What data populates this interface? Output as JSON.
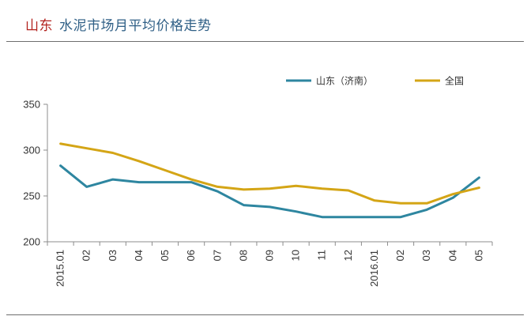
{
  "header": {
    "region": "山东",
    "title": "水泥市场月平均价格走势"
  },
  "chart_data": {
    "type": "line",
    "categories": [
      "2015.01",
      "02",
      "03",
      "04",
      "05",
      "06",
      "07",
      "08",
      "09",
      "10",
      "11",
      "12",
      "2016.01",
      "02",
      "03",
      "04",
      "05"
    ],
    "series": [
      {
        "name": "山东（济南）",
        "color": "#2e86a0",
        "values": [
          283,
          260,
          268,
          265,
          265,
          265,
          255,
          240,
          238,
          233,
          227,
          227,
          227,
          227,
          235,
          248,
          270
        ]
      },
      {
        "name": "全国",
        "color": "#d4a516",
        "values": [
          307,
          302,
          297,
          288,
          278,
          268,
          260,
          257,
          258,
          261,
          258,
          256,
          245,
          242,
          242,
          252,
          259
        ]
      }
    ],
    "yticks": [
      200,
      250,
      300,
      350
    ],
    "ylim": [
      200,
      350
    ],
    "grid": false,
    "legend": "top-right"
  }
}
